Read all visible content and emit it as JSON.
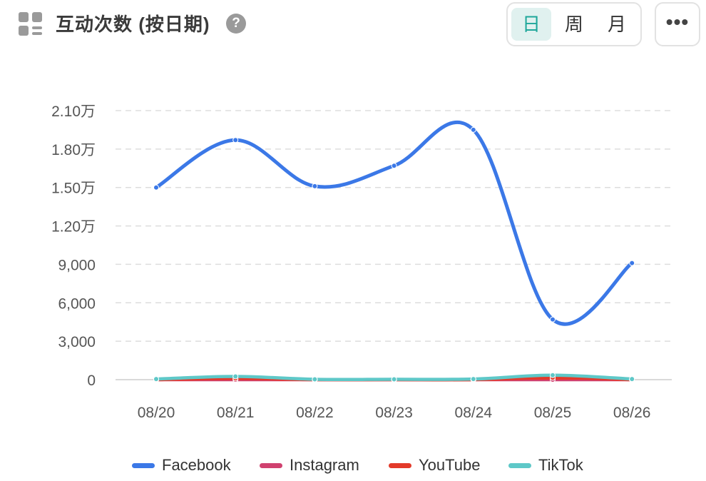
{
  "header": {
    "title": "互动次数 (按日期)",
    "help_label": "?",
    "granularity_options": [
      "日",
      "周",
      "月"
    ],
    "selected_granularity": "日",
    "more_label": "•••"
  },
  "colors": {
    "accent": "#1ea79a",
    "Facebook": "#3b78e7",
    "Instagram": "#d0416f",
    "YouTube": "#e33a2a",
    "TikTok": "#5ec8c8"
  },
  "chart_data": {
    "type": "line",
    "categories": [
      "08/20",
      "08/21",
      "08/22",
      "08/23",
      "08/24",
      "08/25",
      "08/26"
    ],
    "y_ticks": [
      0,
      3000,
      6000,
      9000,
      12000,
      15000,
      18000,
      21000
    ],
    "y_tick_labels": [
      "0",
      "3,000",
      "6,000",
      "9,000",
      "1.20万",
      "1.50万",
      "1.80万",
      "2.10万"
    ],
    "ylim": [
      0,
      21000
    ],
    "grid": true,
    "legend_position": "bottom",
    "series": [
      {
        "name": "Facebook",
        "values": [
          15000,
          18700,
          15100,
          16700,
          19500,
          4700,
          9100
        ]
      },
      {
        "name": "Instagram",
        "values": [
          0,
          0,
          0,
          0,
          0,
          0,
          0
        ]
      },
      {
        "name": "YouTube",
        "values": [
          0,
          100,
          0,
          0,
          0,
          150,
          0
        ]
      },
      {
        "name": "TikTok",
        "values": [
          50,
          250,
          30,
          30,
          50,
          350,
          50
        ]
      }
    ]
  }
}
